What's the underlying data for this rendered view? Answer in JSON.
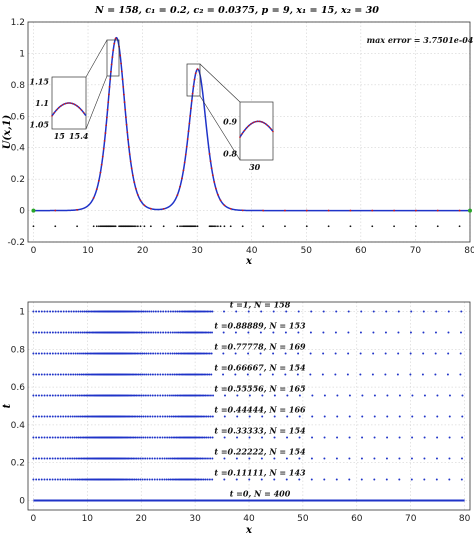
{
  "chart_data": [
    {
      "type": "line",
      "title": "N = 158, c₁ = 0.2, c₂ = 0.0375, p = 9, x₁ = 15, x₂ = 30",
      "xlabel": "x",
      "ylabel": "U(x,1)",
      "xlim": [
        -1,
        80
      ],
      "ylim": [
        -0.2,
        1.2
      ],
      "xticks": [
        "0",
        "10",
        "20",
        "30",
        "40",
        "50",
        "60",
        "70",
        "80"
      ],
      "yticks": [
        "-0.2",
        "0",
        "0.2",
        "0.4",
        "0.6",
        "0.8",
        "1",
        "1.2"
      ],
      "grid": true,
      "annotation": "max error = 3.7501e-04",
      "solitons": [
        {
          "center": 15.2,
          "amplitude": 1.1,
          "width_param": 0.475
        },
        {
          "center": 30.1,
          "amplitude": 0.9,
          "width_param": 0.475
        }
      ],
      "inset_1": {
        "xticks": [
          "15",
          "15.4"
        ],
        "yticks": [
          "1.15",
          "1.1",
          "1.05"
        ],
        "xlim": [
          14.85,
          15.55
        ],
        "ylim": [
          1.04,
          1.16
        ]
      },
      "inset_2": {
        "xticks": [
          "30"
        ],
        "yticks": [
          "0.9",
          "0.8"
        ],
        "xlim": [
          29.6,
          30.5
        ],
        "ylim": [
          0.78,
          0.96
        ]
      },
      "node_row_y": -0.1
    },
    {
      "type": "scatter",
      "xlabel": "x",
      "ylabel": "t",
      "xlim": [
        -1,
        81
      ],
      "ylim": [
        -0.05,
        1.05
      ],
      "xticks": [
        "0",
        "10",
        "20",
        "30",
        "40",
        "50",
        "60",
        "70",
        "80"
      ],
      "yticks": [
        "0",
        "0.2",
        "0.4",
        "0.6",
        "0.8",
        "1"
      ],
      "grid": true,
      "rows": [
        {
          "t": 1,
          "label": "t =1,  N = 158"
        },
        {
          "t": 0.88889,
          "label": "t =0.88889, N = 153"
        },
        {
          "t": 0.77778,
          "label": "t =0.77778, N = 169"
        },
        {
          "t": 0.66667,
          "label": "t =0.66667, N = 154"
        },
        {
          "t": 0.55556,
          "label": "t =0.55556, N = 165"
        },
        {
          "t": 0.44444,
          "label": "t =0.44444, N = 166"
        },
        {
          "t": 0.33333,
          "label": "t =0.33333, N = 154"
        },
        {
          "t": 0.22222,
          "label": "t =0.22222, N = 154"
        },
        {
          "t": 0.11111,
          "label": "t =0.11111, N = 143"
        },
        {
          "t": 0,
          "label": "t =0,  N = 400"
        }
      ]
    }
  ],
  "colors": {
    "exact_line": "#1f33c8",
    "numeric_points": "#d01818",
    "nodes": "#111111",
    "grid": "#c8c8c8",
    "zero_marker": "#2aa52a"
  }
}
